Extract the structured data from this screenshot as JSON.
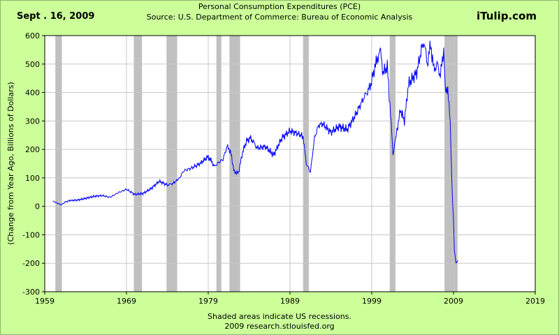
{
  "header": {
    "date": "Sept . 16, 2009",
    "brand": "iTulip.com",
    "title": "Personal Consumption Expenditures (PCE)",
    "source": "Source: U.S. Department of Commerce: Bureau of Economic Analysis"
  },
  "footer": {
    "note": "Shaded areas indicate US recessions.",
    "credit": "2009 research.stlouisfed.org"
  },
  "colors": {
    "background": "#ccff99",
    "plot_background": "#ffffff",
    "grid": "#c8c8c8",
    "recession": "#c0c0c0",
    "line": "#0000ff"
  },
  "chart_data": {
    "type": "line",
    "title": "Personal Consumption Expenditures (PCE)",
    "xlabel": "",
    "ylabel": "(Change from Year Ago, Billions of Dollars)",
    "xlim": [
      1959,
      2019
    ],
    "ylim": [
      -300,
      600
    ],
    "xticks": [
      1959,
      1969,
      1979,
      1989,
      1999,
      2009,
      2019
    ],
    "yticks": [
      600,
      500,
      400,
      300,
      200,
      100,
      0,
      -100,
      -200,
      -300
    ],
    "grid": true,
    "recessions": [
      [
        1960.3,
        1961.1
      ],
      [
        1969.9,
        1970.9
      ],
      [
        1973.9,
        1975.2
      ],
      [
        1980.0,
        1980.6
      ],
      [
        1981.6,
        1982.9
      ],
      [
        1990.6,
        1991.3
      ],
      [
        2001.2,
        2001.9
      ],
      [
        2007.9,
        2009.5
      ]
    ],
    "series": [
      {
        "name": "PCE change from year ago",
        "x": [
          1960.0,
          1960.5,
          1961.0,
          1961.5,
          1962.0,
          1963.0,
          1964.0,
          1965.0,
          1966.0,
          1967.0,
          1968.0,
          1969.0,
          1970.0,
          1971.0,
          1972.0,
          1973.0,
          1974.0,
          1974.8,
          1975.5,
          1976.0,
          1977.0,
          1978.0,
          1979.0,
          1979.8,
          1980.3,
          1980.8,
          1981.3,
          1981.7,
          1982.2,
          1982.7,
          1983.2,
          1983.7,
          1984.2,
          1985.0,
          1986.0,
          1987.0,
          1988.0,
          1989.0,
          1990.0,
          1990.6,
          1991.0,
          1991.5,
          1992.0,
          1992.5,
          1993.0,
          1994.0,
          1995.0,
          1996.0,
          1997.0,
          1998.0,
          1998.8,
          1999.3,
          1999.7,
          2000.0,
          2000.4,
          2000.9,
          2001.3,
          2001.6,
          2001.8,
          2002.0,
          2002.5,
          2003.0,
          2003.5,
          2004.0,
          2004.5,
          2005.0,
          2005.4,
          2005.8,
          2006.2,
          2006.6,
          2007.0,
          2007.4,
          2007.8,
          2008.0,
          2008.3,
          2008.6,
          2008.8,
          2009.0,
          2009.1,
          2009.3,
          2009.5
        ],
        "values": [
          18,
          12,
          5,
          15,
          20,
          22,
          28,
          35,
          38,
          32,
          48,
          60,
          42,
          45,
          62,
          88,
          75,
          82,
          100,
          125,
          135,
          150,
          175,
          140,
          155,
          165,
          210,
          195,
          120,
          118,
          190,
          230,
          240,
          205,
          210,
          180,
          240,
          265,
          255,
          245,
          150,
          120,
          240,
          285,
          290,
          260,
          280,
          270,
          320,
          380,
          420,
          480,
          520,
          555,
          470,
          490,
          330,
          175,
          220,
          250,
          340,
          300,
          430,
          450,
          470,
          540,
          580,
          500,
          570,
          480,
          500,
          460,
          550,
          420,
          400,
          300,
          80,
          -50,
          -150,
          -200,
          -190
        ]
      }
    ]
  }
}
